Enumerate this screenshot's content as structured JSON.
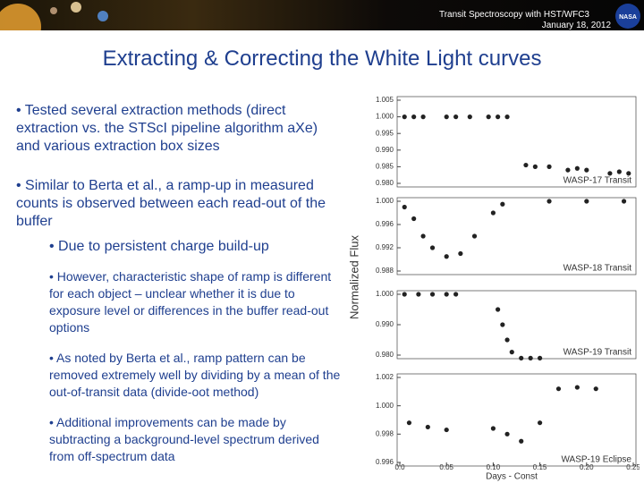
{
  "header": {
    "subtitle": "Transit Spectroscopy with HST/WFC3",
    "date": "January 18, 2012",
    "logo": "NASA"
  },
  "title": "Extracting & Correcting the White Light curves",
  "bullets": [
    {
      "level": 1,
      "text": "• Tested several extraction methods (direct extraction  vs. the STScI pipeline algorithm aXe) and various extraction box sizes"
    },
    {
      "level": 1,
      "text": "• Similar to Berta et al., a ramp-up in measured counts is observed between each read-out of the buffer"
    },
    {
      "level": 2,
      "text": "• Due to persistent charge build-up"
    },
    {
      "level": 3,
      "text": "• However, characteristic shape of ramp is different for each object – unclear whether it is due to exposure level or differences in the buffer read-out options"
    },
    {
      "level": 3,
      "text": "• As noted by Berta et al., ramp pattern can be removed extremely well by dividing by a mean of the out-of-transit data (divide-oot method)"
    },
    {
      "level": 3,
      "text": "• Additional improvements can be made by subtracting a background-level spectrum derived from off-spectrum data"
    }
  ],
  "figure": {
    "type": "scatter",
    "ylabel": "Normalized Flux",
    "xlabel": "Days - Const",
    "xlim": [
      0,
      0.25
    ],
    "xticks": [
      {
        "value": 0,
        "label": "0.0"
      },
      0.05,
      {
        "value": 0.1,
        "label": "0.10"
      },
      0.15,
      {
        "value": 0.2,
        "label": "0.20"
      },
      0.25
    ],
    "panels": [
      {
        "name": "WASP-17 Transit",
        "ylim": [
          0.98,
          1.005
        ],
        "yticks": [
          1.005,
          {
            "value": 1,
            "label": "1.000"
          },
          0.995,
          {
            "value": 0.99,
            "label": "0.990"
          },
          0.985,
          {
            "value": 0.98,
            "label": "0.980"
          }
        ],
        "x": [
          0.005,
          0.015,
          0.025,
          0.05,
          0.06,
          0.075,
          0.095,
          0.105,
          0.115,
          0.135,
          0.145,
          0.16,
          0.18,
          0.19,
          0.2,
          0.225,
          0.235,
          0.245
        ],
        "y": [
          1.0,
          1.0,
          1.0,
          1.0,
          1.0,
          1.0,
          1.0,
          1.0,
          1.0,
          0.9855,
          0.985,
          0.985,
          0.984,
          0.9845,
          0.984,
          0.983,
          0.9835,
          0.983
        ]
      },
      {
        "name": "WASP-18 Transit",
        "ylim": [
          0.988,
          1.0
        ],
        "yticks": [
          {
            "value": 1,
            "label": "1.000"
          },
          0.996,
          0.992,
          0.988
        ],
        "x": [
          0.005,
          0.015,
          0.025,
          0.035,
          0.05,
          0.065,
          0.08,
          0.1,
          0.11,
          0.16,
          0.2,
          0.24
        ],
        "y": [
          0.999,
          0.997,
          0.994,
          0.992,
          0.9905,
          0.991,
          0.994,
          0.998,
          0.9995,
          1.0,
          1.0,
          1.0
        ]
      },
      {
        "name": "WASP-19 Transit",
        "ylim": [
          0.98,
          1.0
        ],
        "yticks": [
          {
            "value": 1,
            "label": "1.000"
          },
          {
            "value": 0.99,
            "label": "0.990"
          },
          {
            "value": 0.98,
            "label": "0.980"
          }
        ],
        "x": [
          0.005,
          0.02,
          0.035,
          0.05,
          0.06,
          0.105,
          0.11,
          0.115,
          0.12,
          0.13,
          0.14,
          0.15
        ],
        "y": [
          1.0,
          1.0,
          1.0,
          1.0,
          1.0,
          0.995,
          0.99,
          0.985,
          0.981,
          0.979,
          0.979,
          0.979
        ]
      },
      {
        "name": "WASP-19 Eclipse",
        "ylim": [
          0.996,
          1.002
        ],
        "yticks": [
          1.002,
          {
            "value": 1,
            "label": "1.000"
          },
          0.998,
          0.996
        ],
        "x": [
          0.01,
          0.03,
          0.05,
          0.1,
          0.115,
          0.13,
          0.15,
          0.17,
          0.19,
          0.21
        ],
        "y": [
          0.9988,
          0.9985,
          0.9983,
          0.9984,
          0.998,
          0.9975,
          0.9988,
          1.0012,
          1.0013,
          1.0012
        ]
      }
    ]
  }
}
